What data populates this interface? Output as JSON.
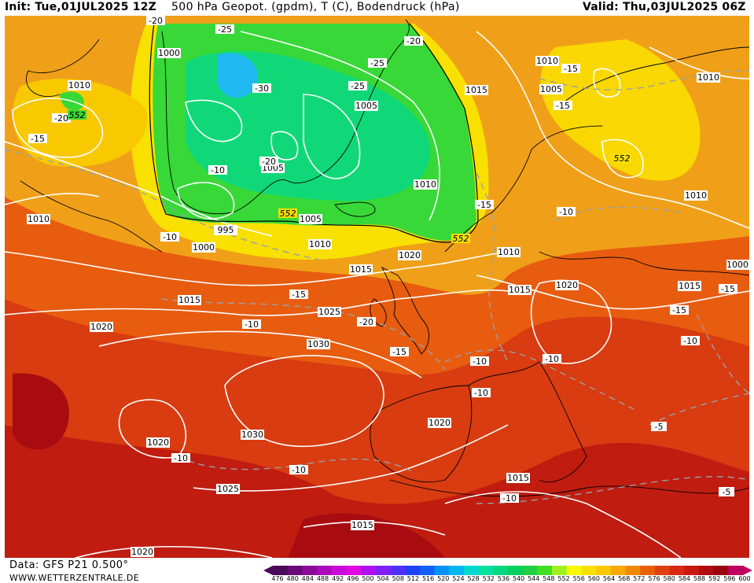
{
  "header": {
    "init": "Init: Tue,01JUL2025 12Z",
    "title": "500 hPa Geopot. (gpdm), T (C), Bodendruck (hPa)",
    "valid": "Valid: Thu,03JUL2025 06Z"
  },
  "footer": {
    "data_source": "Data: GFS P21 0.500°",
    "website": "WWW.WETTERZENTRALE.DE"
  },
  "legend": {
    "levels": [
      "476",
      "480",
      "484",
      "488",
      "492",
      "496",
      "500",
      "504",
      "508",
      "512",
      "516",
      "520",
      "524",
      "528",
      "532",
      "536",
      "540",
      "544",
      "548",
      "552",
      "556",
      "560",
      "564",
      "568",
      "572",
      "576",
      "580",
      "584",
      "588",
      "592",
      "596",
      "600"
    ],
    "colors": [
      "#4a0a5a",
      "#6a0a7a",
      "#8a0a9a",
      "#aa0aba",
      "#ca0ada",
      "#e00ae0",
      "#b010f0",
      "#8020f8",
      "#5030f8",
      "#2040f8",
      "#1060f8",
      "#0090f8",
      "#00b8f0",
      "#00d8d0",
      "#00e0a0",
      "#00d880",
      "#00d060",
      "#20d040",
      "#40e020",
      "#a0f020",
      "#f8f800",
      "#f8e000",
      "#f8c800",
      "#f8a800",
      "#f08800",
      "#e86000",
      "#e04010",
      "#d82810",
      "#c81810",
      "#b00c10",
      "#980410",
      "#c00060"
    ]
  },
  "map": {
    "pressure_labels": [
      "1000",
      "1010",
      "1010",
      "1010",
      "1015",
      "1005",
      "1010",
      "1020",
      "1015",
      "1015",
      "1025",
      "1020",
      "1030",
      "1030",
      "1020",
      "1020",
      "1025",
      "1015",
      "1015",
      "1020",
      "1015",
      "1000",
      "995",
      "1005",
      "1005",
      "1010",
      "1010",
      "1010",
      "1020",
      "1015",
      "1010",
      "1005",
      "1000",
      "1015",
      "1015"
    ],
    "temperature_labels": [
      "-20",
      "-25",
      "-20",
      "-25",
      "-30",
      "-25",
      "-15",
      "-20",
      "-15",
      "-20",
      "-10",
      "-15",
      "-10",
      "-10",
      "-15",
      "-20",
      "-15",
      "-10",
      "-10",
      "-10",
      "-10",
      "-10",
      "-5",
      "-5",
      "-15",
      "-10",
      "-15",
      "-15",
      "-10",
      "-10"
    ],
    "geopotential_labels": [
      "552",
      "552",
      "552",
      "552"
    ]
  }
}
